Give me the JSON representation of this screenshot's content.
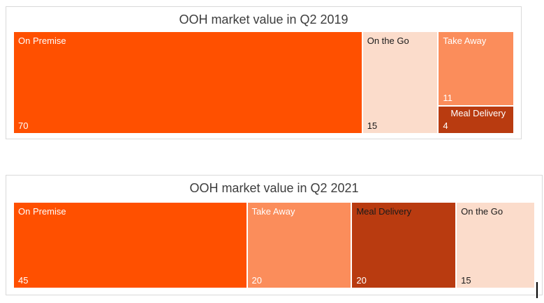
{
  "page": {
    "background_color": "#FFFFFF",
    "chart_border_color": "#D9D9D9",
    "title_color": "#3D3D3D"
  },
  "chart_data": [
    {
      "type": "treemap",
      "title": "OOH market value in Q2 2019",
      "total": 100,
      "legend_position": "none",
      "segments": [
        {
          "label": "On Premise",
          "value": 70,
          "color": "#FF5000",
          "label_color": "#FFFFFF",
          "value_color": "#FFFFFF"
        },
        {
          "label": "On the Go",
          "value": 15,
          "color": "#FBDCCB",
          "label_color": "#1A1A1A",
          "value_color": "#1A1A1A"
        },
        {
          "label": "Take Away",
          "value": 11,
          "color": "#FB8D5B",
          "label_color": "#FFFFFF",
          "value_color": "#FFFFFF"
        },
        {
          "label": "Meal Delivery",
          "value": 4,
          "color": "#B93B10",
          "label_color": "#FFFFFF",
          "value_color": "#FFFFFF",
          "compact": true
        }
      ],
      "layout_columns": [
        [
          0
        ],
        [
          1
        ],
        [
          2,
          3
        ]
      ]
    },
    {
      "type": "treemap",
      "title": "OOH market value in Q2 2021",
      "total": 100,
      "legend_position": "none",
      "segments": [
        {
          "label": "On Premise",
          "value": 45,
          "color": "#FF5000",
          "label_color": "#FFFFFF",
          "value_color": "#FFFFFF"
        },
        {
          "label": "Take Away",
          "value": 20,
          "color": "#FB8D5B",
          "label_color": "#FFFFFF",
          "value_color": "#FFFFFF"
        },
        {
          "label": "Meal Delivery",
          "value": 20,
          "color": "#B93B10",
          "label_color": "#1A1A1A",
          "value_color": "#FFFFFF"
        },
        {
          "label": "On the Go",
          "value": 15,
          "color": "#FBDCCB",
          "label_color": "#1A1A1A",
          "value_color": "#1A1A1A"
        }
      ],
      "layout_columns": [
        [
          0
        ],
        [
          1
        ],
        [
          2
        ],
        [
          3
        ]
      ]
    }
  ]
}
